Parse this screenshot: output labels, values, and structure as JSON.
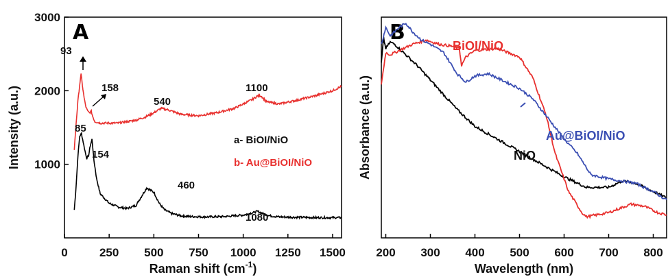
{
  "colors": {
    "black": "#000000",
    "red": "#e8312f",
    "blue": "#3b4fb3"
  },
  "chart_data": [
    {
      "type": "line",
      "panel_label": "A",
      "xlabel": "Raman shift (cm",
      "xlabel_sup": "-1",
      "xlabel_close": ")",
      "ylabel": "Intensity (a.u.)",
      "xlim": [
        0,
        1550
      ],
      "ylim": [
        0,
        3000
      ],
      "xticks": [
        "0",
        "250",
        "500",
        "750",
        "1000",
        "1250",
        "1500"
      ],
      "yticks": [
        "1000",
        "2000",
        "3000"
      ],
      "series": [
        {
          "name": "a- BiOI/NiO",
          "color": "#000000",
          "x": [
            55,
            65,
            75,
            85,
            95,
            105,
            115,
            125,
            135,
            145,
            154,
            165,
            180,
            200,
            250,
            300,
            350,
            400,
            430,
            460,
            480,
            500,
            530,
            560,
            600,
            650,
            700,
            800,
            900,
            1000,
            1050,
            1080,
            1110,
            1150,
            1200,
            1300,
            1400,
            1500,
            1550
          ],
          "y": [
            380,
            700,
            1100,
            1380,
            1420,
            1300,
            1180,
            1080,
            1120,
            1260,
            1340,
            1050,
            800,
            600,
            470,
            420,
            400,
            440,
            560,
            680,
            650,
            620,
            470,
            380,
            330,
            300,
            290,
            285,
            290,
            310,
            340,
            360,
            330,
            300,
            285,
            280,
            275,
            275,
            275
          ]
        },
        {
          "name": "b- Au@BiOI/NiO",
          "color": "#e8312f",
          "x": [
            55,
            65,
            75,
            85,
            93,
            100,
            110,
            120,
            130,
            140,
            150,
            158,
            170,
            200,
            300,
            400,
            450,
            500,
            540,
            580,
            650,
            750,
            850,
            950,
            1000,
            1050,
            1080,
            1100,
            1130,
            1200,
            1300,
            1400,
            1500,
            1550
          ],
          "y": [
            1200,
            1550,
            1850,
            2080,
            2220,
            2080,
            1900,
            1780,
            1720,
            1700,
            1720,
            1650,
            1580,
            1560,
            1560,
            1600,
            1640,
            1700,
            1760,
            1740,
            1680,
            1660,
            1700,
            1760,
            1820,
            1880,
            1930,
            1930,
            1850,
            1820,
            1870,
            1930,
            2000,
            2060
          ]
        }
      ],
      "annotations": [
        "93",
        "158",
        "540",
        "1100",
        "85",
        "154",
        "460",
        "1080"
      ]
    },
    {
      "type": "line",
      "panel_label": "B",
      "xlabel": "Wavelength (nm)",
      "ylabel": "Absorbance (a.u.)",
      "xlim": [
        190,
        830
      ],
      "ylim": [
        0,
        1
      ],
      "xticks": [
        "200",
        "300",
        "400",
        "500",
        "600",
        "700",
        "800"
      ],
      "series": [
        {
          "name": "NiO",
          "color": "#000000",
          "x": [
            190,
            195,
            200,
            210,
            220,
            230,
            250,
            270,
            300,
            330,
            360,
            400,
            450,
            500,
            550,
            600,
            650,
            700,
            730,
            760,
            800,
            830
          ],
          "y": [
            0.83,
            0.95,
            0.9,
            0.93,
            0.92,
            0.9,
            0.86,
            0.82,
            0.75,
            0.68,
            0.61,
            0.53,
            0.47,
            0.41,
            0.35,
            0.29,
            0.24,
            0.24,
            0.27,
            0.26,
            0.22,
            0.19
          ]
        },
        {
          "name": "BiOI/NiO",
          "color": "#e8312f",
          "x": [
            190,
            200,
            210,
            230,
            260,
            290,
            320,
            350,
            365,
            370,
            380,
            400,
            450,
            500,
            530,
            560,
            580,
            610,
            640,
            650,
            700,
            750,
            780,
            810,
            830
          ],
          "y": [
            0.73,
            0.88,
            0.87,
            0.89,
            0.92,
            0.94,
            0.92,
            0.91,
            0.9,
            0.82,
            0.86,
            0.89,
            0.9,
            0.86,
            0.76,
            0.58,
            0.4,
            0.22,
            0.12,
            0.1,
            0.12,
            0.16,
            0.15,
            0.12,
            0.11
          ]
        },
        {
          "name": "Au@BiOI/NiO",
          "color": "#3b4fb3",
          "x": [
            190,
            200,
            210,
            230,
            245,
            260,
            280,
            300,
            330,
            360,
            380,
            400,
            430,
            460,
            500,
            530,
            560,
            600,
            630,
            660,
            700,
            730,
            760,
            800,
            830
          ],
          "y": [
            0.92,
            1.0,
            0.96,
            1.0,
            1.02,
            0.98,
            0.94,
            0.92,
            0.88,
            0.78,
            0.74,
            0.77,
            0.78,
            0.75,
            0.71,
            0.66,
            0.58,
            0.47,
            0.4,
            0.3,
            0.28,
            0.27,
            0.26,
            0.22,
            0.18
          ]
        }
      ]
    }
  ]
}
